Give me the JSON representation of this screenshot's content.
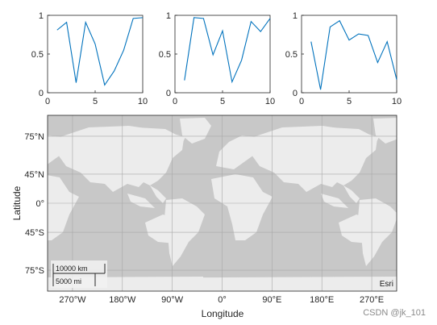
{
  "chart_data": [
    {
      "type": "line",
      "x": [
        1,
        2,
        3,
        4,
        5,
        6,
        7,
        8,
        9,
        10
      ],
      "series": [
        {
          "values": [
            0.81,
            0.91,
            0.13,
            0.91,
            0.63,
            0.1,
            0.28,
            0.55,
            0.96,
            0.97
          ]
        }
      ],
      "xlim": [
        0,
        10
      ],
      "ylim": [
        0,
        1
      ],
      "xticks": [
        "0",
        "5",
        "10"
      ],
      "yticks": [
        "0",
        "0.5",
        "1"
      ],
      "color": "#0072BD",
      "grid": false
    },
    {
      "type": "line",
      "x": [
        1,
        2,
        3,
        4,
        5,
        6,
        7,
        8,
        9,
        10
      ],
      "series": [
        {
          "values": [
            0.16,
            0.97,
            0.96,
            0.49,
            0.8,
            0.14,
            0.42,
            0.92,
            0.79,
            0.96
          ]
        }
      ],
      "xlim": [
        0,
        10
      ],
      "ylim": [
        0,
        1
      ],
      "xticks": [
        "0",
        "5",
        "10"
      ],
      "yticks": [
        "0",
        "0.5",
        "1"
      ],
      "color": "#0072BD",
      "grid": false
    },
    {
      "type": "line",
      "x": [
        1,
        2,
        3,
        4,
        5,
        6,
        7,
        8,
        9,
        10
      ],
      "series": [
        {
          "values": [
            0.66,
            0.04,
            0.85,
            0.93,
            0.68,
            0.76,
            0.74,
            0.39,
            0.66,
            0.17
          ]
        }
      ],
      "xlim": [
        0,
        10
      ],
      "ylim": [
        0,
        1
      ],
      "xticks": [
        "0",
        "5",
        "10"
      ],
      "yticks": [
        "0",
        "0.5",
        "1"
      ],
      "color": "#0072BD",
      "grid": false
    },
    {
      "type": "map",
      "xlabel": "Longitude",
      "ylabel": "Latitude",
      "xlim": [
        -315,
        315
      ],
      "ylim": [
        -90,
        90
      ],
      "lon_grid": [
        -270,
        -180,
        -90,
        0,
        90,
        180,
        270
      ],
      "lat_grid": [
        -75,
        -45,
        0,
        45,
        75
      ],
      "xticks": [
        "270°W",
        "180°W",
        "90°W",
        "0°",
        "90°E",
        "180°E",
        "270°E"
      ],
      "yticks": [
        "75°N",
        "45°N",
        "0°",
        "45°S",
        "75°S"
      ],
      "scalebar": {
        "km": "10000 km",
        "mi": "5000 mi"
      },
      "attribution": "Esri",
      "land_color": "#ececec",
      "ocean_color": "#c8c8c8",
      "grid": true
    }
  ],
  "watermark": "CSDN @jk_101"
}
